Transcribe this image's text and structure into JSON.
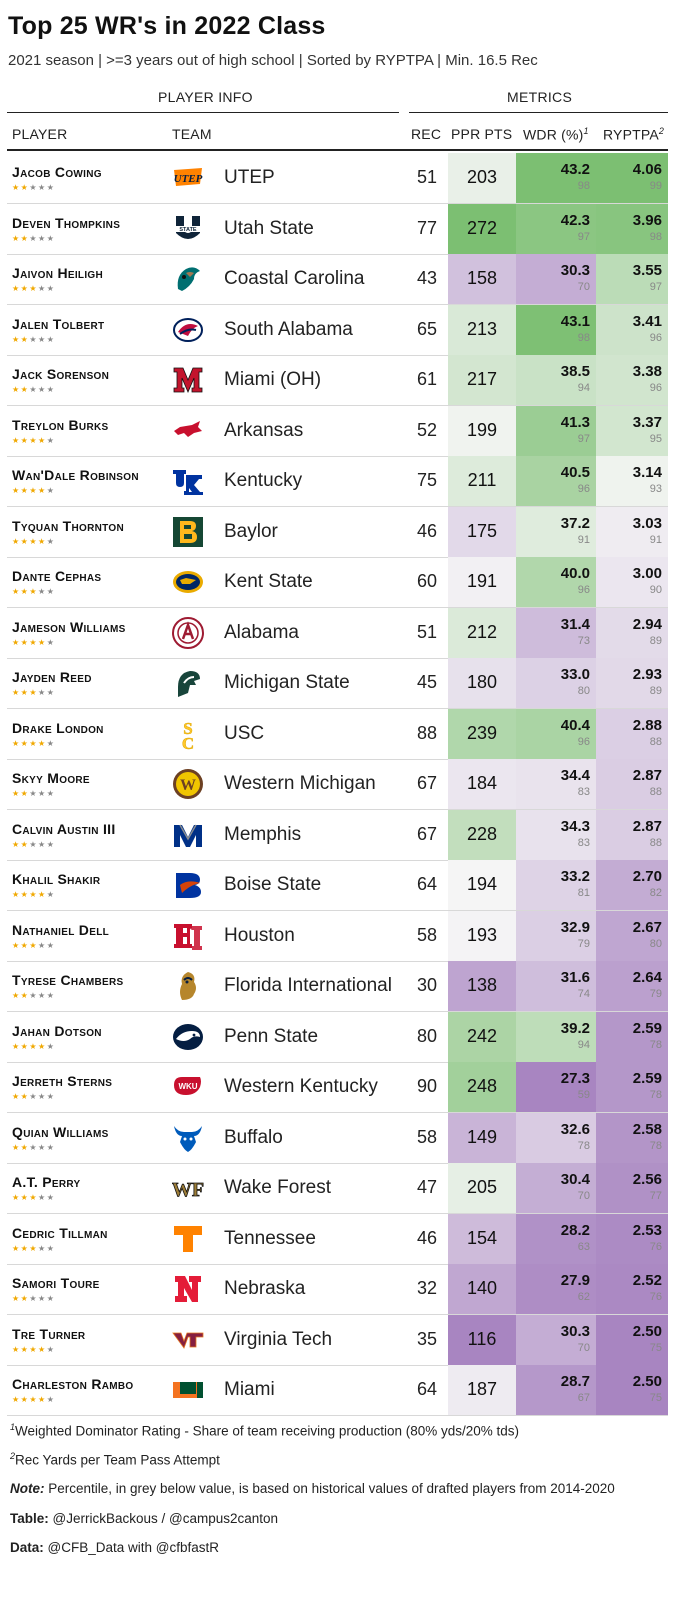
{
  "title": "Top 25 WR's in 2022 Class",
  "subtitle": "2021 season | >=3 years out of high school | Sorted by RYPTPA | Min. 16.5 Rec",
  "groups": {
    "player_info": "PLAYER INFO",
    "metrics": "METRICS"
  },
  "columns": {
    "player": "PLAYER",
    "team": "TEAM",
    "rec": "REC",
    "ppr": "PPR PTS",
    "wdr": "WDR (%)",
    "wdr_sup": "1",
    "ryptpa": "RYPTPA",
    "ryptpa_sup": "2"
  },
  "colors": {
    "green_dark": "#7cbf72",
    "purple_dark": "#a885c1",
    "neutral": "#f6f6f6",
    "star_on": "#f0a800",
    "star_off": "#888888"
  },
  "chart_data": {
    "type": "table",
    "rows": [
      {
        "player": "Jacob Cowing",
        "stars": 2,
        "team": "UTEP",
        "logo": "utep-logo",
        "rec": 51,
        "ppr": 203,
        "wdr": "43.2",
        "wdr_pct": 98,
        "ryptpa": "4.06",
        "ryptpa_pct": 99
      },
      {
        "player": "Deven Thompkins",
        "stars": 2,
        "team": "Utah State",
        "logo": "utah-state-logo",
        "rec": 77,
        "ppr": 272,
        "wdr": "42.3",
        "wdr_pct": 97,
        "ryptpa": "3.96",
        "ryptpa_pct": 98
      },
      {
        "player": "Jaivon Heiligh",
        "stars": 3,
        "team": "Coastal Carolina",
        "logo": "coastal-carolina-logo",
        "rec": 43,
        "ppr": 158,
        "wdr": "30.3",
        "wdr_pct": 70,
        "ryptpa": "3.55",
        "ryptpa_pct": 97
      },
      {
        "player": "Jalen Tolbert",
        "stars": 2,
        "team": "South Alabama",
        "logo": "south-alabama-logo",
        "rec": 65,
        "ppr": 213,
        "wdr": "43.1",
        "wdr_pct": 98,
        "ryptpa": "3.41",
        "ryptpa_pct": 96
      },
      {
        "player": "Jack Sorenson",
        "stars": 2,
        "team": "Miami (OH)",
        "logo": "miami-oh-logo",
        "rec": 61,
        "ppr": 217,
        "wdr": "38.5",
        "wdr_pct": 94,
        "ryptpa": "3.38",
        "ryptpa_pct": 96
      },
      {
        "player": "Treylon Burks",
        "stars": 4,
        "team": "Arkansas",
        "logo": "arkansas-logo",
        "rec": 52,
        "ppr": 199,
        "wdr": "41.3",
        "wdr_pct": 97,
        "ryptpa": "3.37",
        "ryptpa_pct": 95
      },
      {
        "player": "Wan'Dale Robinson",
        "stars": 4,
        "team": "Kentucky",
        "logo": "kentucky-logo",
        "rec": 75,
        "ppr": 211,
        "wdr": "40.5",
        "wdr_pct": 96,
        "ryptpa": "3.14",
        "ryptpa_pct": 93
      },
      {
        "player": "Tyquan Thornton",
        "stars": 4,
        "team": "Baylor",
        "logo": "baylor-logo",
        "rec": 46,
        "ppr": 175,
        "wdr": "37.2",
        "wdr_pct": 91,
        "ryptpa": "3.03",
        "ryptpa_pct": 91
      },
      {
        "player": "Dante Cephas",
        "stars": 3,
        "team": "Kent State",
        "logo": "kent-state-logo",
        "rec": 60,
        "ppr": 191,
        "wdr": "40.0",
        "wdr_pct": 96,
        "ryptpa": "3.00",
        "ryptpa_pct": 90
      },
      {
        "player": "Jameson Williams",
        "stars": 4,
        "team": "Alabama",
        "logo": "alabama-logo",
        "rec": 51,
        "ppr": 212,
        "wdr": "31.4",
        "wdr_pct": 73,
        "ryptpa": "2.94",
        "ryptpa_pct": 89
      },
      {
        "player": "Jayden Reed",
        "stars": 3,
        "team": "Michigan State",
        "logo": "michigan-state-logo",
        "rec": 45,
        "ppr": 180,
        "wdr": "33.0",
        "wdr_pct": 80,
        "ryptpa": "2.93",
        "ryptpa_pct": 89
      },
      {
        "player": "Drake London",
        "stars": 4,
        "team": "USC",
        "logo": "usc-logo",
        "rec": 88,
        "ppr": 239,
        "wdr": "40.4",
        "wdr_pct": 96,
        "ryptpa": "2.88",
        "ryptpa_pct": 88
      },
      {
        "player": "Skyy Moore",
        "stars": 2,
        "team": "Western Michigan",
        "logo": "western-michigan-logo",
        "rec": 67,
        "ppr": 184,
        "wdr": "34.4",
        "wdr_pct": 83,
        "ryptpa": "2.87",
        "ryptpa_pct": 88
      },
      {
        "player": "Calvin Austin III",
        "stars": 2,
        "team": "Memphis",
        "logo": "memphis-logo",
        "rec": 67,
        "ppr": 228,
        "wdr": "34.3",
        "wdr_pct": 83,
        "ryptpa": "2.87",
        "ryptpa_pct": 88
      },
      {
        "player": "Khalil Shakir",
        "stars": 4,
        "team": "Boise State",
        "logo": "boise-state-logo",
        "rec": 64,
        "ppr": 194,
        "wdr": "33.2",
        "wdr_pct": 81,
        "ryptpa": "2.70",
        "ryptpa_pct": 82
      },
      {
        "player": "Nathaniel Dell",
        "stars": 3,
        "team": "Houston",
        "logo": "houston-logo",
        "rec": 58,
        "ppr": 193,
        "wdr": "32.9",
        "wdr_pct": 79,
        "ryptpa": "2.67",
        "ryptpa_pct": 80
      },
      {
        "player": "Tyrese Chambers",
        "stars": 2,
        "team": "Florida International",
        "logo": "fiu-logo",
        "rec": 30,
        "ppr": 138,
        "wdr": "31.6",
        "wdr_pct": 74,
        "ryptpa": "2.64",
        "ryptpa_pct": 79
      },
      {
        "player": "Jahan Dotson",
        "stars": 4,
        "team": "Penn State",
        "logo": "penn-state-logo",
        "rec": 80,
        "ppr": 242,
        "wdr": "39.2",
        "wdr_pct": 94,
        "ryptpa": "2.59",
        "ryptpa_pct": 78
      },
      {
        "player": "Jerreth Sterns",
        "stars": 2,
        "team": "Western Kentucky",
        "logo": "western-kentucky-logo",
        "rec": 90,
        "ppr": 248,
        "wdr": "27.3",
        "wdr_pct": 59,
        "ryptpa": "2.59",
        "ryptpa_pct": 78
      },
      {
        "player": "Quian Williams",
        "stars": 2,
        "team": "Buffalo",
        "logo": "buffalo-logo",
        "rec": 58,
        "ppr": 149,
        "wdr": "32.6",
        "wdr_pct": 78,
        "ryptpa": "2.58",
        "ryptpa_pct": 78
      },
      {
        "player": "A.T. Perry",
        "stars": 3,
        "team": "Wake Forest",
        "logo": "wake-forest-logo",
        "rec": 47,
        "ppr": 205,
        "wdr": "30.4",
        "wdr_pct": 70,
        "ryptpa": "2.56",
        "ryptpa_pct": 77
      },
      {
        "player": "Cedric Tillman",
        "stars": 3,
        "team": "Tennessee",
        "logo": "tennessee-logo",
        "rec": 46,
        "ppr": 154,
        "wdr": "28.2",
        "wdr_pct": 63,
        "ryptpa": "2.53",
        "ryptpa_pct": 76
      },
      {
        "player": "Samori Toure",
        "stars": 2,
        "team": "Nebraska",
        "logo": "nebraska-logo",
        "rec": 32,
        "ppr": 140,
        "wdr": "27.9",
        "wdr_pct": 62,
        "ryptpa": "2.52",
        "ryptpa_pct": 76
      },
      {
        "player": "Tre Turner",
        "stars": 4,
        "team": "Virginia Tech",
        "logo": "virginia-tech-logo",
        "rec": 35,
        "ppr": 116,
        "wdr": "30.3",
        "wdr_pct": 70,
        "ryptpa": "2.50",
        "ryptpa_pct": 75
      },
      {
        "player": "Charleston Rambo",
        "stars": 4,
        "team": "Miami",
        "logo": "miami-logo",
        "rec": 64,
        "ppr": 187,
        "wdr": "28.7",
        "wdr_pct": 67,
        "ryptpa": "2.50",
        "ryptpa_pct": 75
      }
    ]
  },
  "footnotes": {
    "fn1_sup": "1",
    "fn1": "Weighted Dominator Rating - Share of team receiving production (80% yds/20% tds)",
    "fn2_sup": "2",
    "fn2": "Rec Yards per Team Pass Attempt",
    "note_label": "Note:",
    "note": " Percentile, in grey below value, is based on historical values of drafted players from 2014-2020",
    "table_label": "Table:",
    "table": " @JerrickBackous / @campus2canton",
    "data_label": "Data:",
    "data": " @CFB_Data with @cfbfastR"
  }
}
